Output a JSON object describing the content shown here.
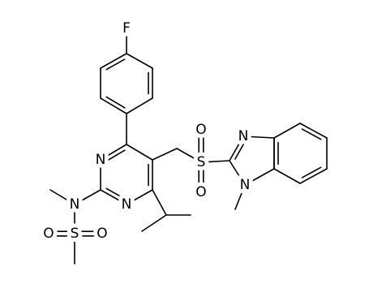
{
  "atoms": [
    {
      "label": "F"
    },
    {
      "label": "N"
    },
    {
      "label": "N"
    },
    {
      "label": "N"
    },
    {
      "label": "S"
    },
    {
      "label": "O"
    },
    {
      "label": "O"
    },
    {
      "label": "S"
    },
    {
      "label": "O"
    },
    {
      "label": "O"
    },
    {
      "label": "N"
    },
    {
      "label": "N"
    }
  ]
}
